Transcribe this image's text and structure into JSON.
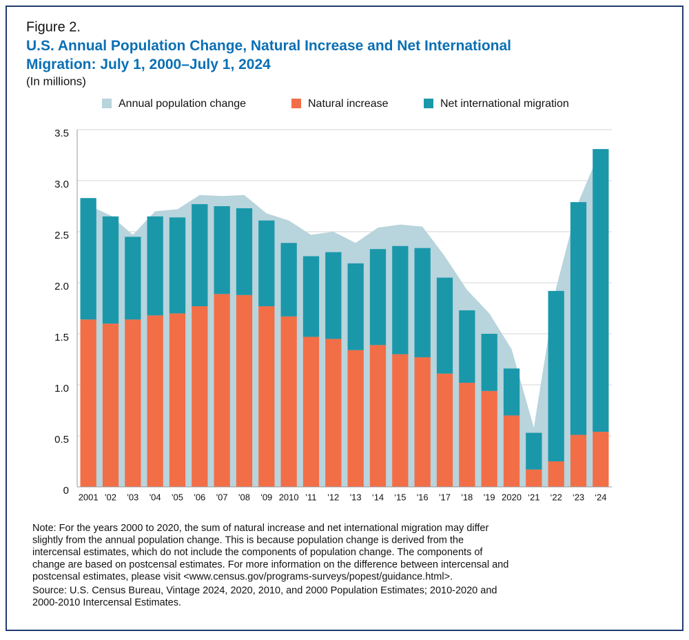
{
  "chart_data": {
    "type": "stacked-bar-area",
    "figure_label": "Figure 2.",
    "title": "U.S. Annual Population Change, Natural Increase and Net International Migration: July 1, 2000–July 1, 2024",
    "subtitle": "(In millions)",
    "categories": [
      "2001",
      "'02",
      "'03",
      "'04",
      "'05",
      "'06",
      "'07",
      "'08",
      "'09",
      "2010",
      "'11",
      "'12",
      "'13",
      "‘14",
      "‘15",
      "'16",
      "'17",
      "'18",
      "'19",
      "2020",
      "‘21",
      "‘22",
      "‘23",
      "‘24"
    ],
    "area": {
      "name": "Annual population change",
      "color": "#b8d4dc",
      "values": [
        2.76,
        2.66,
        2.47,
        2.7,
        2.72,
        2.86,
        2.85,
        2.86,
        2.68,
        2.61,
        2.47,
        2.5,
        2.39,
        2.54,
        2.57,
        2.55,
        2.26,
        1.93,
        1.7,
        1.35,
        0.58,
        1.95,
        2.79,
        3.31
      ]
    },
    "series": [
      {
        "name": "Natural increase",
        "color": "#f26e47",
        "values": [
          1.64,
          1.6,
          1.64,
          1.68,
          1.7,
          1.77,
          1.89,
          1.88,
          1.77,
          1.67,
          1.47,
          1.45,
          1.34,
          1.39,
          1.3,
          1.27,
          1.11,
          1.02,
          0.94,
          0.7,
          0.17,
          0.25,
          0.51,
          0.54
        ]
      },
      {
        "name": "Net international migration",
        "color": "#1a98aa",
        "values": [
          1.19,
          1.05,
          0.81,
          0.97,
          0.94,
          1.0,
          0.86,
          0.85,
          0.84,
          0.72,
          0.79,
          0.85,
          0.85,
          0.94,
          1.06,
          1.07,
          0.94,
          0.71,
          0.56,
          0.46,
          0.36,
          1.67,
          2.28,
          2.77
        ]
      }
    ],
    "ylim": [
      0,
      3.5
    ],
    "yticks": [
      0,
      0.5,
      {
        "value": 1,
        "label": "1.0"
      },
      1.5,
      {
        "value": 2,
        "label": "2.0"
      },
      2.5,
      {
        "value": 3,
        "label": "3.0"
      },
      3.5
    ],
    "grid": true,
    "notes": [
      "Note: For the years 2000 to 2020, the sum of natural increase and net international migration may differ",
      "slightly from the annual population change. This is because population change is derived from the",
      "intercensal estimates, which do not include the components of population change. The components of",
      "change are based on postcensal estimates. For more information on the difference between intercensal and",
      "postcensal estimates, please visit <www.census.gov/programs-surveys/popest/guidance.html>.",
      "Source: U.S. Census Bureau, Vintage 2024, 2020, 2010, and 2000 Population Estimates; 2010-2020 and",
      "2000-2010 Intercensal Estimates."
    ]
  }
}
